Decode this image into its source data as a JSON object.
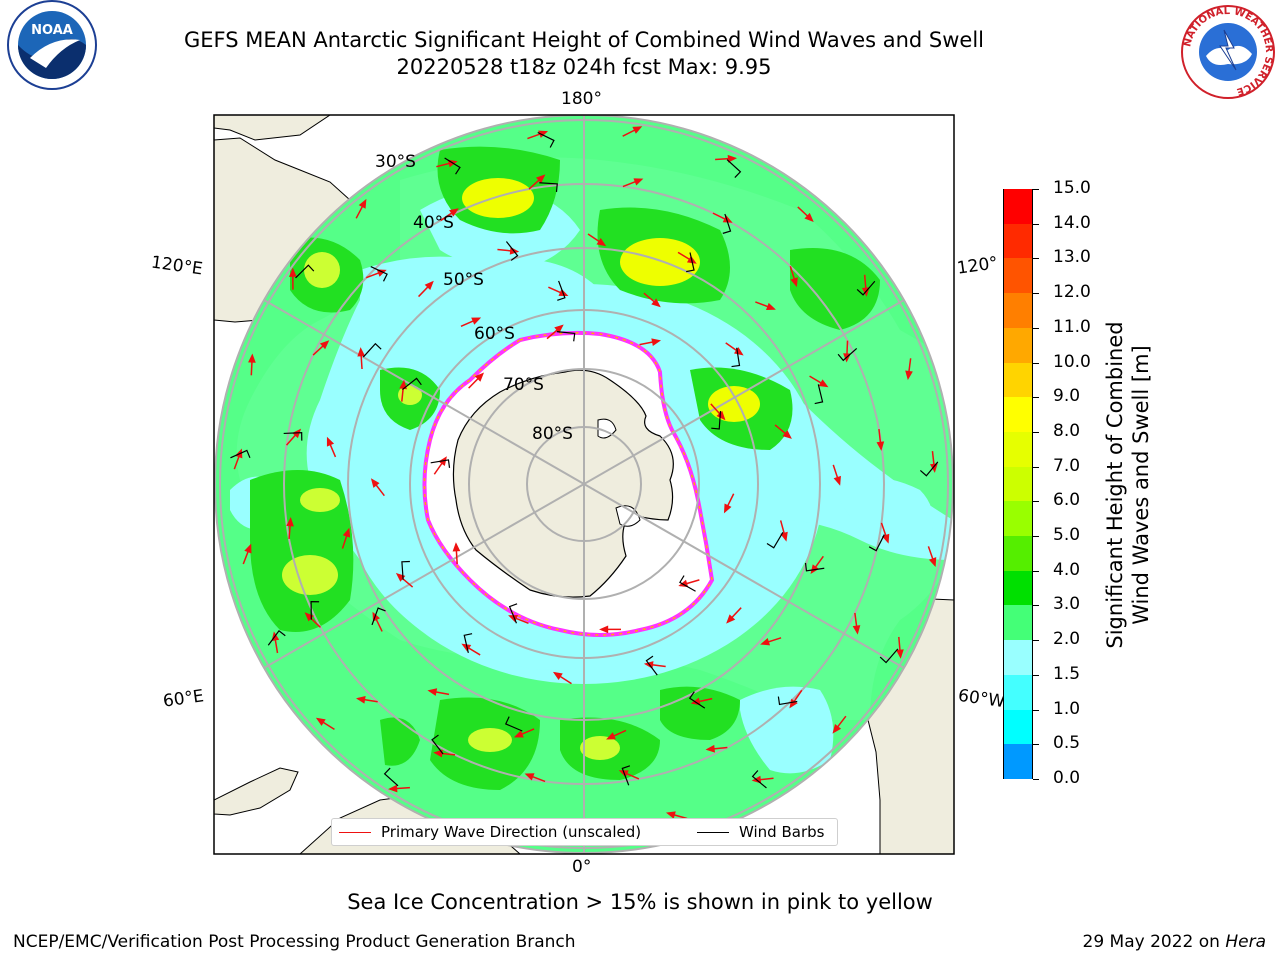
{
  "header": {
    "title_line1": "GEFS MEAN Antarctic Significant Height of Combined Wind Waves and Swell",
    "title_line2": "20220528 t18z 024h fcst   Max: 9.95"
  },
  "map": {
    "longitude_labels": {
      "top": "180°",
      "bottom": "0°",
      "upper_left": "120°E",
      "lower_left": "60°E",
      "upper_right": "120°",
      "lower_right": "60°W"
    },
    "latitude_labels": [
      "30°S",
      "40°S",
      "50°S",
      "60°S",
      "70°S",
      "80°S"
    ],
    "colors": {
      "land": "#efedde",
      "ice": "#ffffff",
      "ice_edge": "#ff33ff",
      "ocean_low": "#99ffff",
      "ocean_mid": "#55ff88",
      "ocean_high": "#22e022",
      "peak": "#eeff00",
      "arrow": "#ff2020"
    }
  },
  "colorbar": {
    "label_line1": "Significant Height of Combined",
    "label_line2": "Wind Waves and Swell [m]",
    "ticks": [
      "15.0",
      "14.0",
      "13.0",
      "12.0",
      "11.0",
      "10.0",
      "9.0",
      "8.0",
      "7.0",
      "6.0",
      "5.0",
      "4.0",
      "3.0",
      "2.0",
      "1.5",
      "1.0",
      "0.5",
      "0.0"
    ],
    "colors": [
      "#ff0000",
      "#ff2a00",
      "#ff5400",
      "#ff7f00",
      "#ffa800",
      "#ffd400",
      "#ffff00",
      "#e6ff00",
      "#ccff00",
      "#99ff00",
      "#55ee00",
      "#00e000",
      "#44ff77",
      "#99ffff",
      "#44ffff",
      "#00ffff",
      "#0099ff",
      "#0066ff",
      "#0000ff"
    ]
  },
  "legend": {
    "primary_wave": "Primary Wave Direction (unscaled)",
    "wind_barbs": "Wind Barbs"
  },
  "note": "Sea Ice Concentration > 15% is shown in pink to yellow",
  "footer": {
    "left": "NCEP/EMC/Verification Post Processing Product Generation Branch",
    "right_prefix": "29 May 2022 on ",
    "right_machine": "Hera"
  },
  "logos": {
    "noaa_text": "NOAA",
    "nws_text": "NATIONAL WEATHER SERVICE"
  }
}
